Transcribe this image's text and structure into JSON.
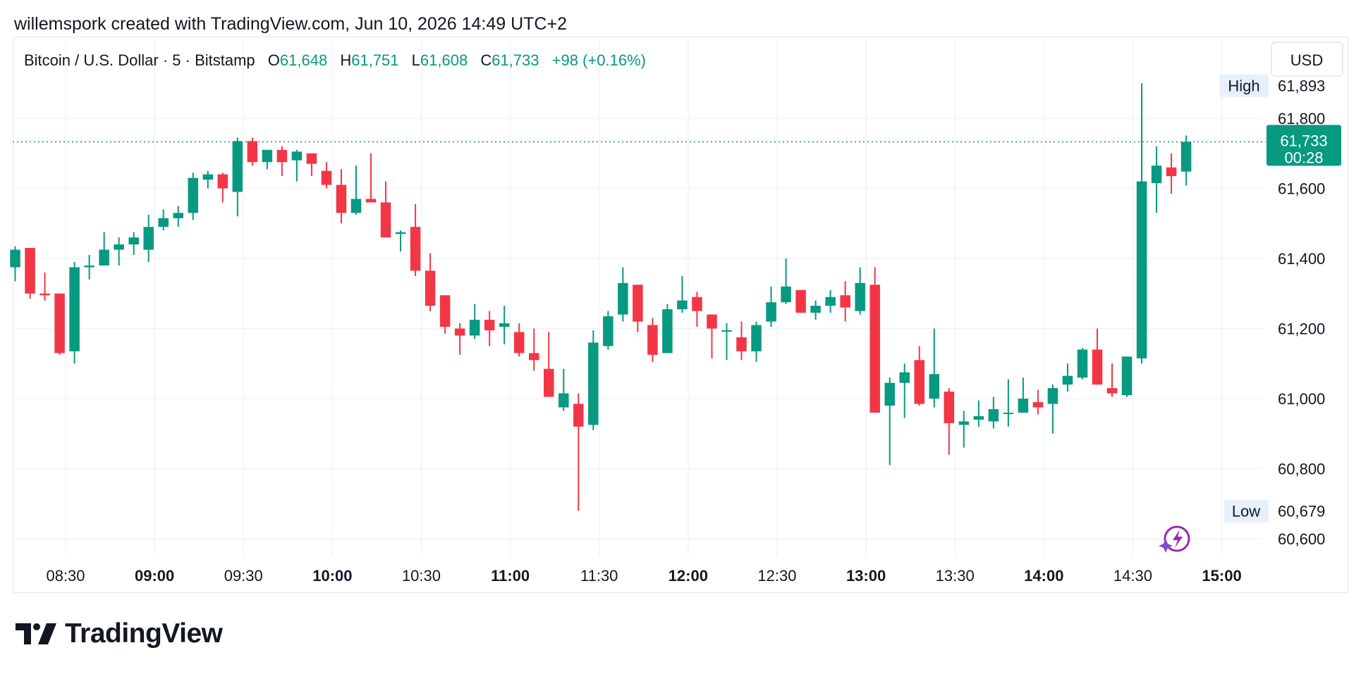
{
  "attribution": "willemspork created with TradingView.com, Jun 10, 2026 14:49 UTC+2",
  "footer_brand": "TradingView",
  "colors": {
    "up": "#089981",
    "down": "#f23645",
    "grid": "#f0f3fa",
    "text": "#131722",
    "ai_icon": "#9c27b0"
  },
  "chart_data": {
    "type": "candlestick",
    "symbol": "Bitcoin / U.S. Dollar · 5 · Bitstamp",
    "ohlc_labels": {
      "o_key": "O",
      "o": "61,648",
      "h_key": "H",
      "h": "61,751",
      "l_key": "L",
      "l": "61,608",
      "c_key": "C",
      "c": "61,733",
      "change": "+98 (+0.16%)"
    },
    "currency": "USD",
    "high_label": "High",
    "high_value": "61,893",
    "low_label": "Low",
    "low_value": "60,679",
    "last_price": "61,733",
    "countdown": "00:28",
    "last_price_value": 61733,
    "y_range": [
      60560,
      62000
    ],
    "y_ticks": [
      {
        "value": 61800,
        "label": "61,800"
      },
      {
        "value": 61600,
        "label": "61,600"
      },
      {
        "value": 61400,
        "label": "61,400"
      },
      {
        "value": 61200,
        "label": "61,200"
      },
      {
        "value": 61000,
        "label": "61,000"
      },
      {
        "value": 60800,
        "label": "60,800"
      },
      {
        "value": 60600,
        "label": "60,600"
      }
    ],
    "x_range_minutes": [
      490,
      930
    ],
    "x_ticks": [
      {
        "minute": 510,
        "label": "08:30",
        "bold": false
      },
      {
        "minute": 540,
        "label": "09:00",
        "bold": true
      },
      {
        "minute": 570,
        "label": "09:30",
        "bold": false
      },
      {
        "minute": 600,
        "label": "10:00",
        "bold": true
      },
      {
        "minute": 630,
        "label": "10:30",
        "bold": false
      },
      {
        "minute": 660,
        "label": "11:00",
        "bold": true
      },
      {
        "minute": 690,
        "label": "11:30",
        "bold": false
      },
      {
        "minute": 720,
        "label": "12:00",
        "bold": true
      },
      {
        "minute": 750,
        "label": "12:30",
        "bold": false
      },
      {
        "minute": 780,
        "label": "13:00",
        "bold": true
      },
      {
        "minute": 810,
        "label": "13:30",
        "bold": false
      },
      {
        "minute": 840,
        "label": "14:00",
        "bold": true
      },
      {
        "minute": 870,
        "label": "14:30",
        "bold": false
      },
      {
        "minute": 900,
        "label": "15:00",
        "bold": true
      }
    ],
    "bar_interval_minutes": 5,
    "first_bar_minute": 493,
    "candles": [
      [
        61375,
        61435,
        61335,
        61425
      ],
      [
        61430,
        61430,
        61285,
        61300
      ],
      [
        61300,
        61360,
        61280,
        61295
      ],
      [
        61300,
        61300,
        61125,
        61130
      ],
      [
        61135,
        61390,
        61100,
        61375
      ],
      [
        61375,
        61410,
        61340,
        61380
      ],
      [
        61380,
        61475,
        61380,
        61425
      ],
      [
        61425,
        61460,
        61380,
        61440
      ],
      [
        61440,
        61475,
        61410,
        61460
      ],
      [
        61425,
        61525,
        61390,
        61490
      ],
      [
        61490,
        61540,
        61480,
        61515
      ],
      [
        61515,
        61550,
        61490,
        61530
      ],
      [
        61530,
        61645,
        61510,
        61630
      ],
      [
        61625,
        61650,
        61600,
        61640
      ],
      [
        61640,
        61645,
        61560,
        61600
      ],
      [
        61590,
        61745,
        61520,
        61735
      ],
      [
        61735,
        61745,
        61665,
        61675
      ],
      [
        61675,
        61710,
        61655,
        61710
      ],
      [
        61710,
        61720,
        61635,
        61675
      ],
      [
        61680,
        61710,
        61620,
        61705
      ],
      [
        61700,
        61700,
        61635,
        61670
      ],
      [
        61650,
        61675,
        61600,
        61610
      ],
      [
        61610,
        61655,
        61500,
        61530
      ],
      [
        61530,
        61665,
        61525,
        61570
      ],
      [
        61570,
        61700,
        61565,
        61560
      ],
      [
        61560,
        61620,
        61460,
        61460
      ],
      [
        61470,
        61480,
        61420,
        61475
      ],
      [
        61490,
        61555,
        61350,
        61365
      ],
      [
        61365,
        61415,
        61250,
        61265
      ],
      [
        61295,
        61295,
        61185,
        61205
      ],
      [
        61200,
        61215,
        61125,
        61180
      ],
      [
        61180,
        61270,
        61170,
        61225
      ],
      [
        61225,
        61250,
        61150,
        61195
      ],
      [
        61205,
        61265,
        61155,
        61215
      ],
      [
        61190,
        61215,
        61120,
        61130
      ],
      [
        61130,
        61200,
        61080,
        61110
      ],
      [
        61085,
        61190,
        61005,
        61005
      ],
      [
        60975,
        61085,
        60965,
        61015
      ],
      [
        60985,
        61015,
        60680,
        60920
      ],
      [
        60925,
        61195,
        60910,
        61160
      ],
      [
        61150,
        61250,
        61140,
        61235
      ],
      [
        61240,
        61375,
        61220,
        61330
      ],
      [
        61325,
        61325,
        61190,
        61220
      ],
      [
        61210,
        61230,
        61105,
        61125
      ],
      [
        61130,
        61270,
        61130,
        61255
      ],
      [
        61255,
        61350,
        61245,
        61280
      ],
      [
        61290,
        61305,
        61205,
        61250
      ],
      [
        61240,
        61240,
        61115,
        61200
      ],
      [
        61195,
        61215,
        61110,
        61195
      ],
      [
        61175,
        61220,
        61110,
        61135
      ],
      [
        61135,
        61220,
        61105,
        61210
      ],
      [
        61220,
        61320,
        61205,
        61275
      ],
      [
        61275,
        61400,
        61270,
        61320
      ],
      [
        61310,
        61310,
        61245,
        61245
      ],
      [
        61245,
        61280,
        61225,
        61265
      ],
      [
        61265,
        61310,
        61245,
        61290
      ],
      [
        61295,
        61335,
        61220,
        61260
      ],
      [
        61250,
        61375,
        61240,
        61330
      ],
      [
        61325,
        61375,
        60960,
        60960
      ],
      [
        60980,
        61060,
        60810,
        61045
      ],
      [
        61045,
        61100,
        60945,
        61075
      ],
      [
        61110,
        61150,
        60980,
        60985
      ],
      [
        61000,
        61200,
        60975,
        61070
      ],
      [
        61020,
        61030,
        60840,
        60930
      ],
      [
        60925,
        60965,
        60860,
        60935
      ],
      [
        60940,
        60995,
        60920,
        60950
      ],
      [
        60935,
        61005,
        60915,
        60970
      ],
      [
        60960,
        61055,
        60920,
        60960
      ],
      [
        60960,
        61060,
        60960,
        61000
      ],
      [
        60990,
        61025,
        60955,
        60975
      ],
      [
        60985,
        61040,
        60900,
        61030
      ],
      [
        61040,
        61100,
        61020,
        61065
      ],
      [
        61060,
        61145,
        61055,
        61140
      ],
      [
        61140,
        61200,
        61040,
        61040
      ],
      [
        61030,
        61100,
        61005,
        61015
      ],
      [
        61010,
        61120,
        61005,
        61120
      ],
      [
        61115,
        61900,
        61100,
        61620
      ],
      [
        61615,
        61720,
        61530,
        61665
      ],
      [
        61660,
        61700,
        61585,
        61635
      ],
      [
        61648,
        61751,
        61608,
        61733
      ]
    ]
  }
}
